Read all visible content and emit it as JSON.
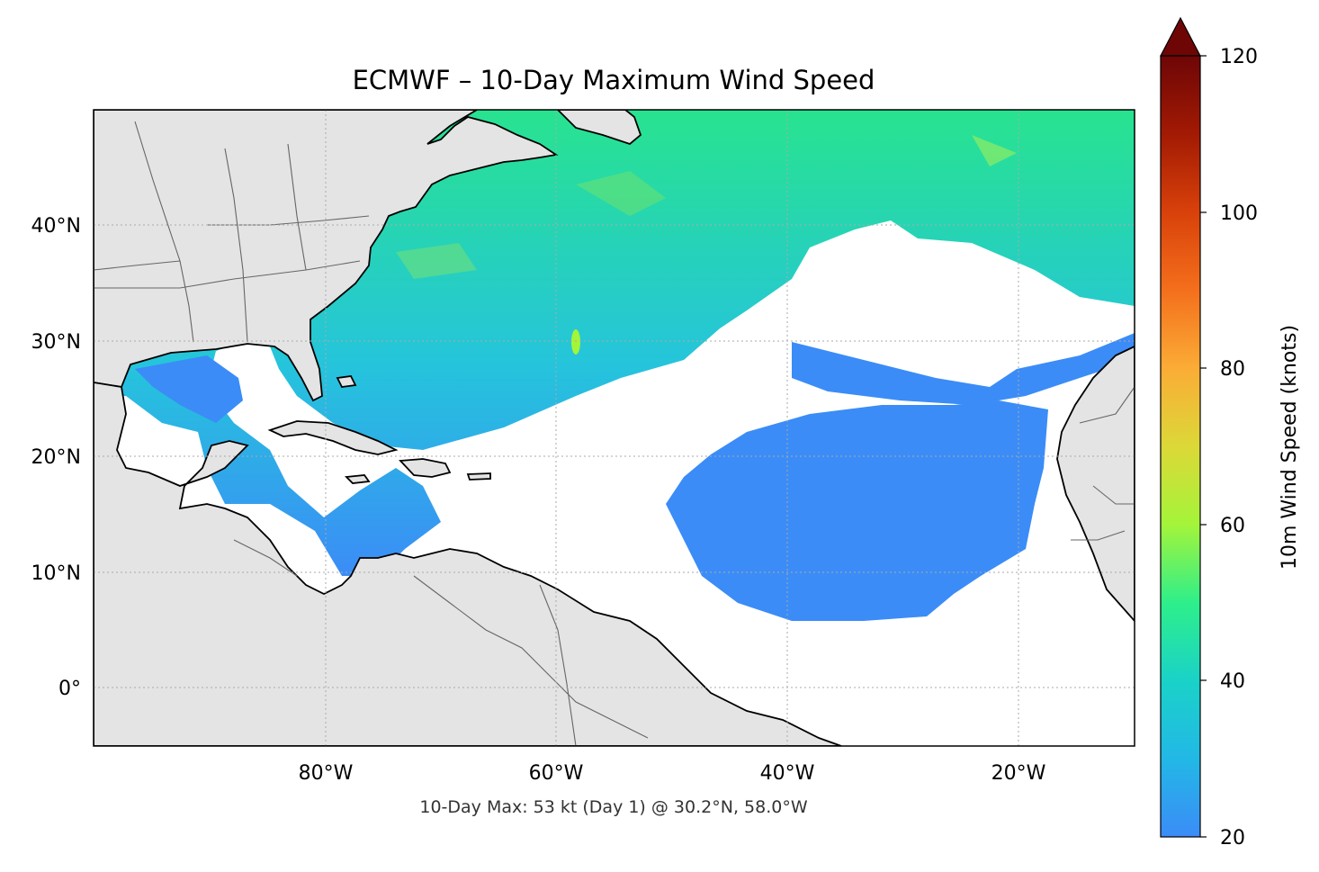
{
  "title": "ECMWF – 10-Day Maximum Wind Speed",
  "footer": "10-Day Max: 53 kt (Day 1) @ 30.2°N, 58.0°W",
  "map": {
    "lon_range": [
      -100,
      -10
    ],
    "lat_range": [
      -5,
      50
    ],
    "lon_ticks": [
      {
        "value": -80,
        "label": "80°W"
      },
      {
        "value": -60,
        "label": "60°W"
      },
      {
        "value": -40,
        "label": "40°W"
      },
      {
        "value": -20,
        "label": "20°W"
      }
    ],
    "lat_ticks": [
      {
        "value": 40,
        "label": "40°N"
      },
      {
        "value": 30,
        "label": "30°N"
      },
      {
        "value": 20,
        "label": "20°N"
      },
      {
        "value": 10,
        "label": "10°N"
      },
      {
        "value": 0,
        "label": "0°"
      }
    ],
    "gridlines": true,
    "land_color": "#e4e4e4",
    "ocean_color": "#ffffff"
  },
  "colorbar": {
    "label": "10m Wind Speed (knots)",
    "min": 20,
    "max": 120,
    "extend": "max",
    "ticks": [
      {
        "value": 20,
        "label": "20"
      },
      {
        "value": 40,
        "label": "40"
      },
      {
        "value": 60,
        "label": "60"
      },
      {
        "value": 80,
        "label": "80"
      },
      {
        "value": 100,
        "label": "100"
      },
      {
        "value": 120,
        "label": "120"
      }
    ],
    "colormap": [
      "#3b8cf7",
      "#22b8e6",
      "#1ad2c8",
      "#2eef8a",
      "#a4f43a",
      "#dcd838",
      "#fbac36",
      "#f46f1c",
      "#d8410a",
      "#a21a04",
      "#6e0606"
    ]
  },
  "max_marker": {
    "value_kt": 53,
    "day": 1,
    "lat": 30.2,
    "lon": -58.0
  }
}
